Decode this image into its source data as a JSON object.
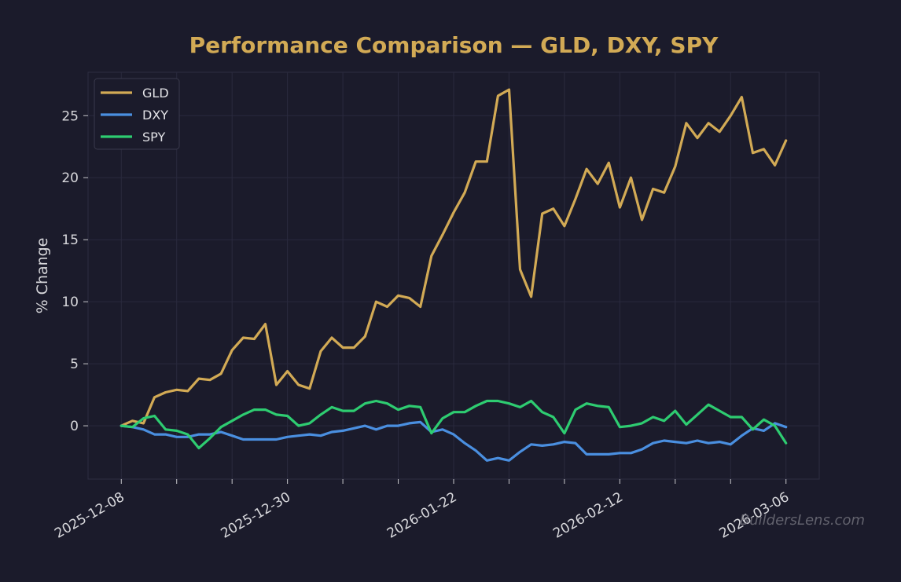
{
  "watermark": "BuildersLens.com",
  "chart_data": {
    "type": "line",
    "title": "Performance Comparison — GLD, DXY, SPY",
    "xlabel": "",
    "ylabel": "% Change",
    "x_tick_labels": [
      "2025-12-08",
      "2025-12-30",
      "2026-01-22",
      "2026-02-12",
      "2026-03-06"
    ],
    "x_tick_label_positions": [
      0,
      15,
      30,
      45,
      60
    ],
    "y_ticks": [
      0,
      5,
      10,
      15,
      20,
      25
    ],
    "ylim": [
      -4.3,
      28.5
    ],
    "xlim": [
      -3,
      63
    ],
    "grid": true,
    "legend": "top-left",
    "colors": {
      "GLD": "#d2aa55",
      "DXY": "#4a8fe0",
      "SPY": "#2ecc71",
      "background": "#1b1b2b"
    },
    "series": [
      {
        "name": "GLD",
        "values": [
          0,
          0.4,
          0.2,
          2.3,
          2.7,
          2.9,
          2.8,
          3.8,
          3.7,
          4.2,
          6.1,
          7.1,
          7.0,
          8.2,
          3.3,
          4.4,
          3.3,
          3.0,
          6.0,
          7.1,
          6.3,
          6.3,
          7.2,
          10.0,
          9.6,
          10.5,
          10.3,
          9.6,
          13.7,
          15.4,
          17.2,
          18.8,
          21.3,
          21.3,
          26.6,
          27.1,
          12.6,
          10.4,
          17.1,
          17.5,
          16.1,
          18.3,
          20.7,
          19.5,
          21.2,
          17.6,
          20.0,
          16.6,
          19.1,
          18.8,
          20.9,
          24.4,
          23.2,
          24.4,
          23.7,
          25.0,
          26.5,
          22.0,
          22.3,
          21.0,
          23.0
        ]
      },
      {
        "name": "DXY",
        "values": [
          0,
          -0.1,
          -0.3,
          -0.7,
          -0.7,
          -0.9,
          -0.9,
          -0.7,
          -0.7,
          -0.5,
          -0.8,
          -1.1,
          -1.1,
          -1.1,
          -1.1,
          -0.9,
          -0.8,
          -0.7,
          -0.8,
          -0.5,
          -0.4,
          -0.2,
          0.0,
          -0.3,
          0.0,
          0.0,
          0.2,
          0.3,
          -0.5,
          -0.3,
          -0.7,
          -1.4,
          -2.0,
          -2.8,
          -2.6,
          -2.8,
          -2.1,
          -1.5,
          -1.6,
          -1.5,
          -1.3,
          -1.4,
          -2.3,
          -2.3,
          -2.3,
          -2.2,
          -2.2,
          -1.9,
          -1.4,
          -1.2,
          -1.3,
          -1.4,
          -1.2,
          -1.4,
          -1.3,
          -1.5,
          -0.8,
          -0.2,
          -0.4,
          0.2,
          -0.1
        ]
      },
      {
        "name": "SPY",
        "values": [
          0,
          -0.1,
          0.6,
          0.8,
          -0.3,
          -0.4,
          -0.7,
          -1.8,
          -1.0,
          -0.1,
          0.4,
          0.9,
          1.3,
          1.3,
          0.9,
          0.8,
          0.0,
          0.2,
          0.9,
          1.5,
          1.2,
          1.2,
          1.8,
          2.0,
          1.8,
          1.3,
          1.6,
          1.5,
          -0.6,
          0.6,
          1.1,
          1.1,
          1.6,
          2.0,
          2.0,
          1.8,
          1.5,
          2.0,
          1.1,
          0.7,
          -0.6,
          1.3,
          1.8,
          1.6,
          1.5,
          -0.1,
          0.0,
          0.2,
          0.7,
          0.4,
          1.2,
          0.1,
          0.9,
          1.7,
          1.2,
          0.7,
          0.7,
          -0.3,
          0.5,
          0.0,
          -1.4
        ]
      }
    ]
  }
}
